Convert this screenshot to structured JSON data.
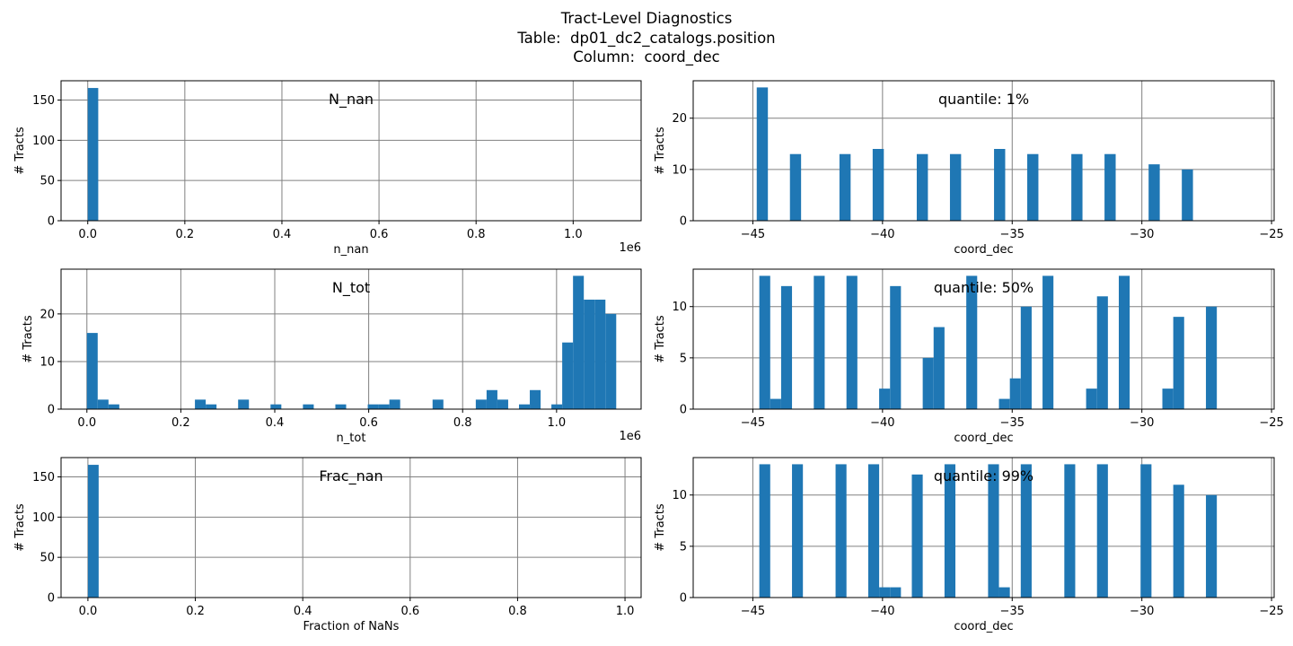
{
  "figure": {
    "title_lines": [
      "Tract-Level Diagnostics",
      "Table:  dp01_dc2_catalogs.position",
      "Column:  coord_dec"
    ]
  },
  "colors": {
    "bar": "#1f77b4",
    "grid": "#808080",
    "axis": "#000000"
  },
  "chart_data": [
    {
      "id": "n_nan",
      "type": "bar",
      "annotation": "N_nan",
      "xlabel": "n_nan",
      "ylabel": "# Tracts",
      "offset_text": "1e6",
      "xlim": [
        -0.055,
        1.14
      ],
      "ylim": [
        0,
        174
      ],
      "xticks": [
        0.0,
        0.2,
        0.4,
        0.6,
        0.8,
        1.0
      ],
      "xtick_labels": [
        "0.0",
        "0.2",
        "0.4",
        "0.6",
        "0.8",
        "1.0"
      ],
      "yticks": [
        0,
        50,
        100,
        150
      ],
      "ytick_labels": [
        "0",
        "50",
        "100",
        "150"
      ],
      "grid": true,
      "bars": [
        {
          "x0": 0.0,
          "x1": 0.0216,
          "value": 165
        }
      ]
    },
    {
      "id": "q1",
      "type": "bar",
      "annotation": "quantile: 1%",
      "xlabel": "coord_dec",
      "ylabel": "# Tracts",
      "xlim": [
        -47.3,
        -24.9
      ],
      "ylim": [
        0,
        27.3
      ],
      "xticks": [
        -45,
        -40,
        -35,
        -30,
        -25
      ],
      "xtick_labels": [
        "−45",
        "−40",
        "−35",
        "−30",
        "−25"
      ],
      "yticks": [
        0,
        10,
        20
      ],
      "ytick_labels": [
        "0",
        "10",
        "20"
      ],
      "grid": true,
      "bars": [
        {
          "x0": -44.85,
          "x1": -44.42,
          "value": 26
        },
        {
          "x0": -43.57,
          "x1": -43.14,
          "value": 13
        },
        {
          "x0": -41.66,
          "x1": -41.23,
          "value": 13
        },
        {
          "x0": -40.38,
          "x1": -39.95,
          "value": 14
        },
        {
          "x0": -38.68,
          "x1": -38.25,
          "value": 13
        },
        {
          "x0": -37.4,
          "x1": -36.97,
          "value": 13
        },
        {
          "x0": -35.7,
          "x1": -35.27,
          "value": 14
        },
        {
          "x0": -34.42,
          "x1": -33.99,
          "value": 13
        },
        {
          "x0": -32.72,
          "x1": -32.29,
          "value": 13
        },
        {
          "x0": -31.44,
          "x1": -31.01,
          "value": 13
        },
        {
          "x0": -29.74,
          "x1": -29.31,
          "value": 11
        },
        {
          "x0": -28.46,
          "x1": -28.03,
          "value": 10
        }
      ]
    },
    {
      "id": "n_tot",
      "type": "bar",
      "annotation": "N_tot",
      "xlabel": "n_tot",
      "ylabel": "# Tracts",
      "offset_text": "1e6",
      "xlim": [
        -0.055,
        1.18
      ],
      "ylim": [
        0,
        29.4
      ],
      "xticks": [
        0.0,
        0.2,
        0.4,
        0.6,
        0.8,
        1.0
      ],
      "xtick_labels": [
        "0.0",
        "0.2",
        "0.4",
        "0.6",
        "0.8",
        "1.0"
      ],
      "yticks": [
        0,
        10,
        20
      ],
      "ytick_labels": [
        "0",
        "10",
        "20"
      ],
      "grid": true,
      "bars": [
        {
          "x0": 0.0,
          "x1": 0.023,
          "value": 16
        },
        {
          "x0": 0.023,
          "x1": 0.046,
          "value": 2
        },
        {
          "x0": 0.046,
          "x1": 0.069,
          "value": 1
        },
        {
          "x0": 0.23,
          "x1": 0.253,
          "value": 2
        },
        {
          "x0": 0.253,
          "x1": 0.276,
          "value": 1
        },
        {
          "x0": 0.322,
          "x1": 0.345,
          "value": 2
        },
        {
          "x0": 0.391,
          "x1": 0.414,
          "value": 1
        },
        {
          "x0": 0.46,
          "x1": 0.483,
          "value": 1
        },
        {
          "x0": 0.529,
          "x1": 0.552,
          "value": 1
        },
        {
          "x0": 0.598,
          "x1": 0.621,
          "value": 1
        },
        {
          "x0": 0.621,
          "x1": 0.644,
          "value": 1
        },
        {
          "x0": 0.644,
          "x1": 0.667,
          "value": 2
        },
        {
          "x0": 0.736,
          "x1": 0.759,
          "value": 2
        },
        {
          "x0": 0.828,
          "x1": 0.851,
          "value": 2
        },
        {
          "x0": 0.851,
          "x1": 0.874,
          "value": 4
        },
        {
          "x0": 0.874,
          "x1": 0.897,
          "value": 2
        },
        {
          "x0": 0.92,
          "x1": 0.943,
          "value": 1
        },
        {
          "x0": 0.943,
          "x1": 0.966,
          "value": 4
        },
        {
          "x0": 0.989,
          "x1": 1.012,
          "value": 1
        },
        {
          "x0": 1.012,
          "x1": 1.035,
          "value": 14
        },
        {
          "x0": 1.035,
          "x1": 1.058,
          "value": 28
        },
        {
          "x0": 1.058,
          "x1": 1.081,
          "value": 23
        },
        {
          "x0": 1.081,
          "x1": 1.104,
          "value": 23
        },
        {
          "x0": 1.104,
          "x1": 1.127,
          "value": 20
        }
      ]
    },
    {
      "id": "q50",
      "type": "bar",
      "annotation": "quantile: 50%",
      "xlabel": "coord_dec",
      "ylabel": "# Tracts",
      "xlim": [
        -47.3,
        -24.9
      ],
      "ylim": [
        0,
        13.65
      ],
      "xticks": [
        -45,
        -40,
        -35,
        -30,
        -25
      ],
      "xtick_labels": [
        "−45",
        "−40",
        "−35",
        "−30",
        "−25"
      ],
      "yticks": [
        0,
        5,
        10
      ],
      "ytick_labels": [
        "0",
        "5",
        "10"
      ],
      "grid": true,
      "bars": [
        {
          "x0": -44.75,
          "x1": -44.33,
          "value": 13
        },
        {
          "x0": -44.33,
          "x1": -43.91,
          "value": 1
        },
        {
          "x0": -43.91,
          "x1": -43.49,
          "value": 12
        },
        {
          "x0": -42.65,
          "x1": -42.23,
          "value": 13
        },
        {
          "x0": -41.39,
          "x1": -40.97,
          "value": 13
        },
        {
          "x0": -40.13,
          "x1": -39.71,
          "value": 2
        },
        {
          "x0": -39.71,
          "x1": -39.29,
          "value": 12
        },
        {
          "x0": -38.45,
          "x1": -38.03,
          "value": 5
        },
        {
          "x0": -38.03,
          "x1": -37.61,
          "value": 8
        },
        {
          "x0": -36.77,
          "x1": -36.35,
          "value": 13
        },
        {
          "x0": -35.51,
          "x1": -35.09,
          "value": 1
        },
        {
          "x0": -35.09,
          "x1": -34.67,
          "value": 3
        },
        {
          "x0": -34.67,
          "x1": -34.25,
          "value": 10
        },
        {
          "x0": -33.83,
          "x1": -33.41,
          "value": 13
        },
        {
          "x0": -32.15,
          "x1": -31.73,
          "value": 2
        },
        {
          "x0": -31.73,
          "x1": -31.31,
          "value": 11
        },
        {
          "x0": -30.89,
          "x1": -30.47,
          "value": 13
        },
        {
          "x0": -29.21,
          "x1": -28.79,
          "value": 2
        },
        {
          "x0": -28.79,
          "x1": -28.37,
          "value": 9
        },
        {
          "x0": -27.53,
          "x1": -27.11,
          "value": 10
        }
      ]
    },
    {
      "id": "frac_nan",
      "type": "bar",
      "annotation": "Frac_nan",
      "xlabel": "Fraction of NaNs",
      "ylabel": "# Tracts",
      "xlim": [
        -0.05,
        1.03
      ],
      "ylim": [
        0,
        174
      ],
      "xticks": [
        0.0,
        0.2,
        0.4,
        0.6,
        0.8,
        1.0
      ],
      "xtick_labels": [
        "0.0",
        "0.2",
        "0.4",
        "0.6",
        "0.8",
        "1.0"
      ],
      "yticks": [
        0,
        50,
        100,
        150
      ],
      "ytick_labels": [
        "0",
        "50",
        "100",
        "150"
      ],
      "grid": true,
      "bars": [
        {
          "x0": 0.0,
          "x1": 0.02,
          "value": 165
        }
      ]
    },
    {
      "id": "q99",
      "type": "bar",
      "annotation": "quantile: 99%",
      "xlabel": "coord_dec",
      "ylabel": "# Tracts",
      "xlim": [
        -47.3,
        -24.9
      ],
      "ylim": [
        0,
        13.65
      ],
      "xticks": [
        -45,
        -40,
        -35,
        -30,
        -25
      ],
      "xtick_labels": [
        "−45",
        "−40",
        "−35",
        "−30",
        "−25"
      ],
      "yticks": [
        0,
        5,
        10
      ],
      "ytick_labels": [
        "0",
        "5",
        "10"
      ],
      "grid": true,
      "bars": [
        {
          "x0": -44.75,
          "x1": -44.33,
          "value": 13
        },
        {
          "x0": -43.49,
          "x1": -43.07,
          "value": 13
        },
        {
          "x0": -41.81,
          "x1": -41.39,
          "value": 13
        },
        {
          "x0": -40.55,
          "x1": -40.13,
          "value": 13
        },
        {
          "x0": -40.13,
          "x1": -39.71,
          "value": 1
        },
        {
          "x0": -39.71,
          "x1": -39.29,
          "value": 1
        },
        {
          "x0": -38.87,
          "x1": -38.45,
          "value": 12
        },
        {
          "x0": -37.61,
          "x1": -37.19,
          "value": 13
        },
        {
          "x0": -35.93,
          "x1": -35.51,
          "value": 13
        },
        {
          "x0": -35.51,
          "x1": -35.09,
          "value": 1
        },
        {
          "x0": -34.67,
          "x1": -34.25,
          "value": 13
        },
        {
          "x0": -32.99,
          "x1": -32.57,
          "value": 13
        },
        {
          "x0": -31.73,
          "x1": -31.31,
          "value": 13
        },
        {
          "x0": -30.05,
          "x1": -29.63,
          "value": 13
        },
        {
          "x0": -28.79,
          "x1": -28.37,
          "value": 11
        },
        {
          "x0": -27.53,
          "x1": -27.11,
          "value": 10
        }
      ]
    }
  ]
}
